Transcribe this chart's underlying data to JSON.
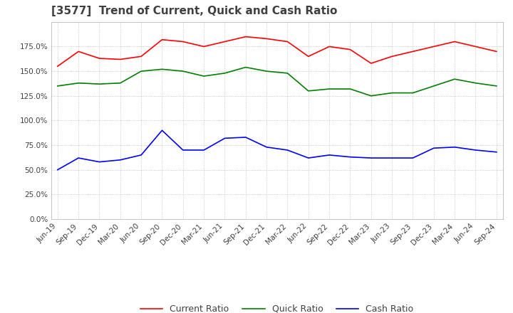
{
  "title": "[3577]  Trend of Current, Quick and Cash Ratio",
  "title_color": "#404040",
  "background_color": "#ffffff",
  "plot_background": "#ffffff",
  "grid_color": "#aaaaaa",
  "x_labels": [
    "Jun-19",
    "Sep-19",
    "Dec-19",
    "Mar-20",
    "Jun-20",
    "Sep-20",
    "Dec-20",
    "Mar-21",
    "Jun-21",
    "Sep-21",
    "Dec-21",
    "Mar-22",
    "Jun-22",
    "Sep-22",
    "Dec-22",
    "Mar-23",
    "Jun-23",
    "Sep-23",
    "Dec-23",
    "Mar-24",
    "Jun-24",
    "Sep-24"
  ],
  "current_ratio": [
    155,
    170,
    163,
    162,
    165,
    182,
    180,
    175,
    180,
    185,
    183,
    180,
    165,
    175,
    172,
    158,
    165,
    170,
    175,
    180,
    175,
    170
  ],
  "quick_ratio": [
    135,
    138,
    137,
    138,
    150,
    152,
    150,
    145,
    148,
    154,
    150,
    148,
    130,
    132,
    132,
    125,
    128,
    128,
    135,
    142,
    138,
    135
  ],
  "cash_ratio": [
    50,
    62,
    58,
    60,
    65,
    90,
    70,
    70,
    82,
    83,
    73,
    70,
    62,
    65,
    63,
    62,
    62,
    62,
    72,
    73,
    70,
    68
  ],
  "current_color": "#ff0000",
  "quick_color": "#008000",
  "cash_color": "#0000ff",
  "ylim": [
    0,
    200
  ],
  "yticks": [
    0,
    25,
    50,
    75,
    100,
    125,
    150,
    175
  ],
  "line_width": 1.2
}
